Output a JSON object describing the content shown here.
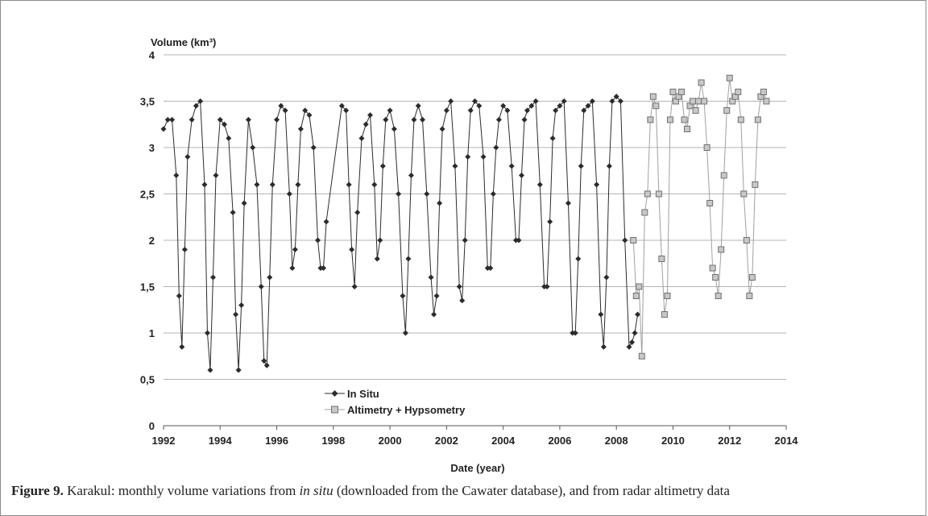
{
  "caption": {
    "label": "Figure 9.",
    "text_before": " Karakul: monthly volume variations from ",
    "italic": "in situ",
    "text_after": " (downloaded from the Cawater database), and from radar altimetry data"
  },
  "chart_data": {
    "type": "line",
    "ylabel": "Volume (km³)",
    "xlabel": "Date (year)",
    "xlim": [
      1992,
      2014
    ],
    "ylim": [
      0,
      4
    ],
    "x_ticks": [
      "1992",
      "1994",
      "1996",
      "1998",
      "2000",
      "2002",
      "2004",
      "2006",
      "2008",
      "2010",
      "2012",
      "2014"
    ],
    "y_ticks": [
      "0",
      "0,5",
      "1",
      "1,5",
      "2",
      "2,5",
      "3",
      "3,5",
      "4"
    ],
    "grid": "horizontal",
    "legend_position": "lower-left",
    "series": [
      {
        "name": "In Situ",
        "marker": "diamond",
        "color": "#2b2b2b",
        "x": [
          1992.0,
          1992.15,
          1992.3,
          1992.45,
          1992.55,
          1992.65,
          1992.75,
          1992.85,
          1993.0,
          1993.15,
          1993.3,
          1993.45,
          1993.55,
          1993.65,
          1993.75,
          1993.85,
          1994.0,
          1994.15,
          1994.3,
          1994.45,
          1994.55,
          1994.65,
          1994.75,
          1994.85,
          1995.0,
          1995.15,
          1995.3,
          1995.45,
          1995.55,
          1995.65,
          1995.75,
          1995.85,
          1996.0,
          1996.15,
          1996.3,
          1996.45,
          1996.55,
          1996.65,
          1996.75,
          1996.85,
          1997.0,
          1997.15,
          1997.3,
          1997.45,
          1997.55,
          1997.65,
          1997.75,
          1998.3,
          1998.45,
          1998.55,
          1998.65,
          1998.75,
          1998.85,
          1999.0,
          1999.15,
          1999.3,
          1999.45,
          1999.55,
          1999.65,
          1999.75,
          1999.85,
          2000.0,
          2000.15,
          2000.3,
          2000.45,
          2000.55,
          2000.65,
          2000.75,
          2000.85,
          2001.0,
          2001.15,
          2001.3,
          2001.45,
          2001.55,
          2001.65,
          2001.75,
          2001.85,
          2002.0,
          2002.15,
          2002.3,
          2002.45,
          2002.55,
          2002.65,
          2002.75,
          2002.85,
          2003.0,
          2003.15,
          2003.3,
          2003.45,
          2003.55,
          2003.65,
          2003.75,
          2003.85,
          2004.0,
          2004.15,
          2004.3,
          2004.45,
          2004.55,
          2004.65,
          2004.75,
          2004.85,
          2005.0,
          2005.15,
          2005.3,
          2005.45,
          2005.55,
          2005.65,
          2005.75,
          2005.85,
          2006.0,
          2006.15,
          2006.3,
          2006.45,
          2006.55,
          2006.65,
          2006.75,
          2006.85,
          2007.0,
          2007.15,
          2007.3,
          2007.45,
          2007.55,
          2007.65,
          2007.75,
          2007.85,
          2008.0,
          2008.15,
          2008.3,
          2008.45,
          2008.55,
          2008.65,
          2008.75
        ],
        "y": [
          3.2,
          3.3,
          3.3,
          2.7,
          1.4,
          0.85,
          1.9,
          2.9,
          3.3,
          3.45,
          3.5,
          2.6,
          1.0,
          0.6,
          1.6,
          2.7,
          3.3,
          3.25,
          3.1,
          2.3,
          1.2,
          0.6,
          1.3,
          2.4,
          3.3,
          3.0,
          2.6,
          1.5,
          0.7,
          0.65,
          1.6,
          2.6,
          3.3,
          3.45,
          3.4,
          2.5,
          1.7,
          1.9,
          2.6,
          3.2,
          3.4,
          3.35,
          3.0,
          2.0,
          1.7,
          1.7,
          2.2,
          3.45,
          3.4,
          2.6,
          1.9,
          1.5,
          2.3,
          3.1,
          3.25,
          3.35,
          2.6,
          1.8,
          2.0,
          2.8,
          3.3,
          3.4,
          3.2,
          2.5,
          1.4,
          1.0,
          1.8,
          2.7,
          3.3,
          3.45,
          3.3,
          2.5,
          1.6,
          1.2,
          1.4,
          2.4,
          3.2,
          3.4,
          3.5,
          2.8,
          1.5,
          1.35,
          2.0,
          2.9,
          3.4,
          3.5,
          3.45,
          2.9,
          1.7,
          1.7,
          2.5,
          3.0,
          3.3,
          3.45,
          3.4,
          2.8,
          2.0,
          2.0,
          2.7,
          3.3,
          3.4,
          3.45,
          3.5,
          2.6,
          1.5,
          1.5,
          2.2,
          3.1,
          3.4,
          3.45,
          3.5,
          2.4,
          1.0,
          1.0,
          1.8,
          2.8,
          3.4,
          3.45,
          3.5,
          2.6,
          1.2,
          0.85,
          1.6,
          2.8,
          3.5,
          3.55,
          3.5,
          2.0,
          0.85,
          0.9,
          1.0,
          1.2
        ]
      },
      {
        "name": "Altimetry + Hypsometry",
        "marker": "square",
        "color": "#a0a0a0",
        "x": [
          2008.6,
          2008.7,
          2008.8,
          2008.9,
          2009.0,
          2009.1,
          2009.2,
          2009.3,
          2009.4,
          2009.5,
          2009.6,
          2009.7,
          2009.8,
          2009.9,
          2010.0,
          2010.1,
          2010.2,
          2010.3,
          2010.4,
          2010.5,
          2010.6,
          2010.7,
          2010.8,
          2010.9,
          2011.0,
          2011.1,
          2011.2,
          2011.3,
          2011.4,
          2011.5,
          2011.6,
          2011.7,
          2011.8,
          2011.9,
          2012.0,
          2012.1,
          2012.2,
          2012.3,
          2012.4,
          2012.5,
          2012.6,
          2012.7,
          2012.8,
          2012.9,
          2013.0,
          2013.1,
          2013.2,
          2013.3
        ],
        "y": [
          2.0,
          1.4,
          1.5,
          0.75,
          2.3,
          2.5,
          3.3,
          3.55,
          3.45,
          2.5,
          1.8,
          1.2,
          1.4,
          3.3,
          3.6,
          3.5,
          3.55,
          3.6,
          3.3,
          3.2,
          3.45,
          3.5,
          3.4,
          3.5,
          3.7,
          3.5,
          3.0,
          2.4,
          1.7,
          1.6,
          1.4,
          1.9,
          2.7,
          3.4,
          3.75,
          3.5,
          3.55,
          3.6,
          3.3,
          2.5,
          2.0,
          1.4,
          1.6,
          2.6,
          3.3,
          3.55,
          3.6,
          3.5
        ]
      }
    ]
  }
}
